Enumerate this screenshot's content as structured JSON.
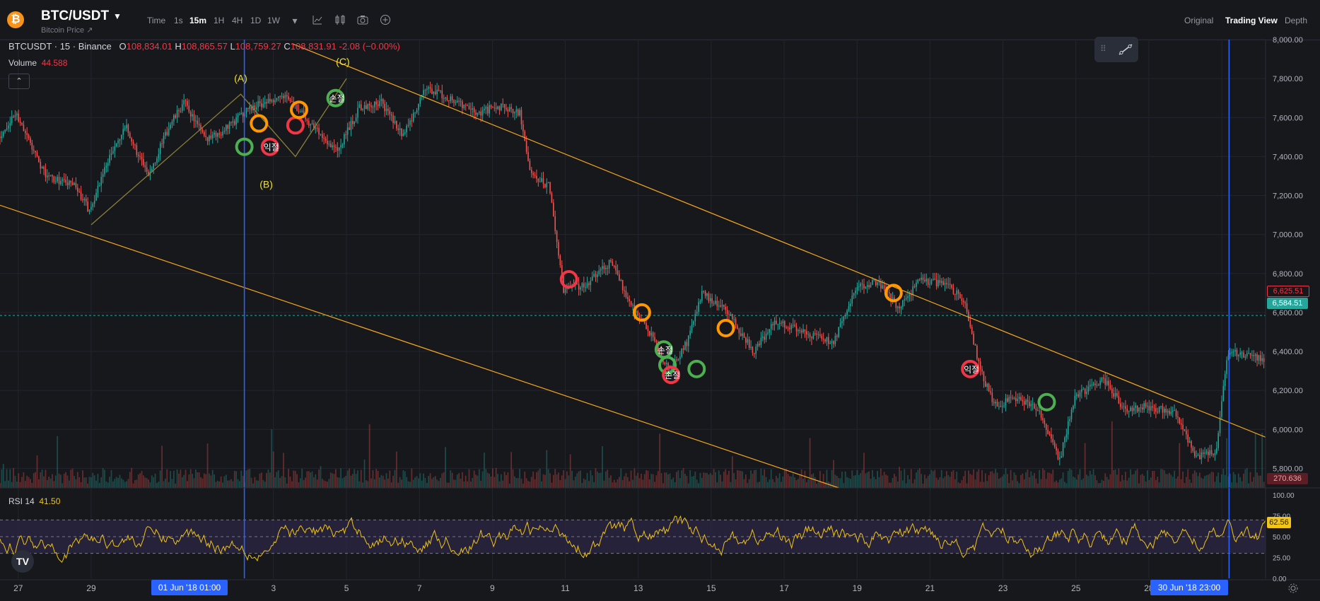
{
  "header": {
    "logo_letter": "₿",
    "pair": "BTC/USDT",
    "subtitle": "Bitcoin Price ↗",
    "timeframes": [
      "Time",
      "1s",
      "15m",
      "1H",
      "4H",
      "1D",
      "1W"
    ],
    "active_timeframe": "15m",
    "tool_icons": [
      "chevron-down-icon",
      "line-chart-icon",
      "indicators-icon",
      "camera-icon",
      "plus-circle-icon"
    ],
    "views": [
      "Original",
      "Trading View",
      "Depth"
    ],
    "active_view": "Trading View"
  },
  "legend": {
    "symbol": "BTCUSDT · 15 · Binance",
    "open_label": "O",
    "open": "108,834.01",
    "high_label": "H",
    "high": "108,865.57",
    "low_label": "L",
    "low": "108,759.27",
    "close_label": "C",
    "close": "108,831.91",
    "change": "-2.08 (−0.00%)",
    "volume_label": "Volume",
    "volume_value": "44.588",
    "collapse": "⌃"
  },
  "rsi": {
    "label": "RSI 14",
    "value": "41.50"
  },
  "price_tags": {
    "last_red": "6,625.51",
    "current_green": "6,584.51",
    "volume_tag": "270.636",
    "rsi_tag": "62.56"
  },
  "date_tags": {
    "left": "01 Jun '18   01:00",
    "right": "30 Jun '18   23:00"
  },
  "colors": {
    "background": "#17181c",
    "grid": "#22252e",
    "up": "#26a69a",
    "down": "#ef5350",
    "trendline": "#f5a623",
    "crosshair": "#2962ff",
    "rsi_line": "#f0c419",
    "marker_green": "#4caf50",
    "marker_red": "#f23645",
    "marker_orange": "#ff9800",
    "wave_label": "#f0e130"
  },
  "chart_data": {
    "type": "candlestick",
    "title": "BTCUSDT · 15 · Binance",
    "y_axis": {
      "ticks": [
        "8,000.00",
        "7,800.00",
        "7,600.00",
        "7,400.00",
        "7,200.00",
        "7,000.00",
        "6,800.00",
        "6,600.00",
        "6,400.00",
        "6,200.00",
        "6,000.00",
        "5,800.00"
      ],
      "range": [
        5700,
        8000
      ]
    },
    "x_axis": {
      "ticks": [
        "27",
        "29",
        "3",
        "5",
        "7",
        "9",
        "11",
        "13",
        "15",
        "17",
        "19",
        "21",
        "23",
        "25",
        "28",
        "3"
      ],
      "tick_positions_days": [
        27,
        29,
        34,
        36,
        38,
        40,
        42,
        44,
        46,
        48,
        50,
        52,
        54,
        56,
        58,
        60
      ],
      "range_days": [
        26.5,
        61.2
      ]
    },
    "price_path": [
      {
        "d": 26.5,
        "p": 7500
      },
      {
        "d": 27.0,
        "p": 7620
      },
      {
        "d": 27.8,
        "p": 7300
      },
      {
        "d": 28.6,
        "p": 7250
      },
      {
        "d": 29.0,
        "p": 7120
      },
      {
        "d": 29.5,
        "p": 7380
      },
      {
        "d": 30.0,
        "p": 7550
      },
      {
        "d": 30.6,
        "p": 7300
      },
      {
        "d": 31.2,
        "p": 7560
      },
      {
        "d": 31.6,
        "p": 7680
      },
      {
        "d": 32.2,
        "p": 7480
      },
      {
        "d": 32.8,
        "p": 7550
      },
      {
        "d": 33.3,
        "p": 7640
      },
      {
        "d": 33.8,
        "p": 7680
      },
      {
        "d": 34.4,
        "p": 7720
      },
      {
        "d": 35.0,
        "p": 7580
      },
      {
        "d": 35.8,
        "p": 7430
      },
      {
        "d": 36.4,
        "p": 7650
      },
      {
        "d": 37.0,
        "p": 7680
      },
      {
        "d": 37.6,
        "p": 7500
      },
      {
        "d": 38.2,
        "p": 7750
      },
      {
        "d": 38.9,
        "p": 7700
      },
      {
        "d": 39.6,
        "p": 7620
      },
      {
        "d": 40.2,
        "p": 7660
      },
      {
        "d": 40.8,
        "p": 7620
      },
      {
        "d": 41.1,
        "p": 7300
      },
      {
        "d": 41.6,
        "p": 7250
      },
      {
        "d": 42.0,
        "p": 6720
      },
      {
        "d": 42.6,
        "p": 6740
      },
      {
        "d": 43.3,
        "p": 6860
      },
      {
        "d": 43.8,
        "p": 6660
      },
      {
        "d": 44.4,
        "p": 6480
      },
      {
        "d": 44.9,
        "p": 6300
      },
      {
        "d": 45.4,
        "p": 6450
      },
      {
        "d": 45.8,
        "p": 6700
      },
      {
        "d": 46.5,
        "p": 6600
      },
      {
        "d": 47.2,
        "p": 6400
      },
      {
        "d": 47.8,
        "p": 6550
      },
      {
        "d": 48.6,
        "p": 6500
      },
      {
        "d": 49.4,
        "p": 6440
      },
      {
        "d": 50.0,
        "p": 6720
      },
      {
        "d": 50.6,
        "p": 6760
      },
      {
        "d": 51.2,
        "p": 6620
      },
      {
        "d": 51.8,
        "p": 6770
      },
      {
        "d": 52.5,
        "p": 6740
      },
      {
        "d": 53.0,
        "p": 6660
      },
      {
        "d": 53.4,
        "p": 6320
      },
      {
        "d": 53.8,
        "p": 6120
      },
      {
        "d": 54.4,
        "p": 6160
      },
      {
        "d": 55.0,
        "p": 6100
      },
      {
        "d": 55.6,
        "p": 5840
      },
      {
        "d": 56.0,
        "p": 6160
      },
      {
        "d": 56.8,
        "p": 6260
      },
      {
        "d": 57.4,
        "p": 6100
      },
      {
        "d": 58.0,
        "p": 6120
      },
      {
        "d": 58.8,
        "p": 6080
      },
      {
        "d": 59.3,
        "p": 5860
      },
      {
        "d": 59.9,
        "p": 5880
      },
      {
        "d": 60.2,
        "p": 6400
      },
      {
        "d": 60.6,
        "p": 6380
      },
      {
        "d": 61.2,
        "p": 6360
      }
    ],
    "trendlines": [
      {
        "from": {
          "d": 26.5,
          "p": 7150
        },
        "to": {
          "d": 49.5,
          "p": 5700
        }
      },
      {
        "from": {
          "d": 34.5,
          "p": 7980
        },
        "to": {
          "d": 61.2,
          "p": 5960
        }
      }
    ],
    "wave_lines": [
      {
        "d": 29.0,
        "p": 7050
      },
      {
        "d": 33.1,
        "p": 7720
      },
      {
        "d": 34.6,
        "p": 7400
      },
      {
        "d": 36.0,
        "p": 7800
      }
    ],
    "wave_labels": [
      {
        "text": "(A)",
        "d": 33.1,
        "p": 7785
      },
      {
        "text": "(B)",
        "d": 33.8,
        "p": 7240
      },
      {
        "text": "(C)",
        "d": 35.9,
        "p": 7870
      }
    ],
    "markers": [
      {
        "color": "green",
        "d": 33.2,
        "p": 7450,
        "text": ""
      },
      {
        "color": "orange",
        "d": 33.6,
        "p": 7570,
        "text": ""
      },
      {
        "color": "red",
        "d": 33.9,
        "p": 7450,
        "text": "익절"
      },
      {
        "color": "red",
        "d": 34.6,
        "p": 7560,
        "text": ""
      },
      {
        "color": "orange",
        "d": 34.7,
        "p": 7640,
        "text": ""
      },
      {
        "color": "green",
        "d": 35.7,
        "p": 7700,
        "text": "손절"
      },
      {
        "color": "red",
        "d": 42.1,
        "p": 6770,
        "text": ""
      },
      {
        "color": "orange",
        "d": 44.1,
        "p": 6600,
        "text": ""
      },
      {
        "color": "green",
        "d": 44.7,
        "p": 6410,
        "text": "손절"
      },
      {
        "color": "green",
        "d": 44.8,
        "p": 6330,
        "text": ""
      },
      {
        "color": "red",
        "d": 44.9,
        "p": 6280,
        "text": "손절"
      },
      {
        "color": "green",
        "d": 45.6,
        "p": 6310,
        "text": ""
      },
      {
        "color": "orange",
        "d": 46.4,
        "p": 6520,
        "text": ""
      },
      {
        "color": "orange",
        "d": 51.0,
        "p": 6700,
        "text": ""
      },
      {
        "color": "red",
        "d": 53.1,
        "p": 6310,
        "text": "익절"
      },
      {
        "color": "green",
        "d": 55.2,
        "p": 6140,
        "text": ""
      }
    ],
    "crosshair_days": [
      33.2,
      60.2
    ],
    "current_price": 6584.51,
    "rsi": {
      "label": "RSI 14",
      "ticks": [
        "100.00",
        "75.00",
        "50.00",
        "25.00",
        "0.00"
      ],
      "band": [
        30,
        70
      ]
    }
  }
}
